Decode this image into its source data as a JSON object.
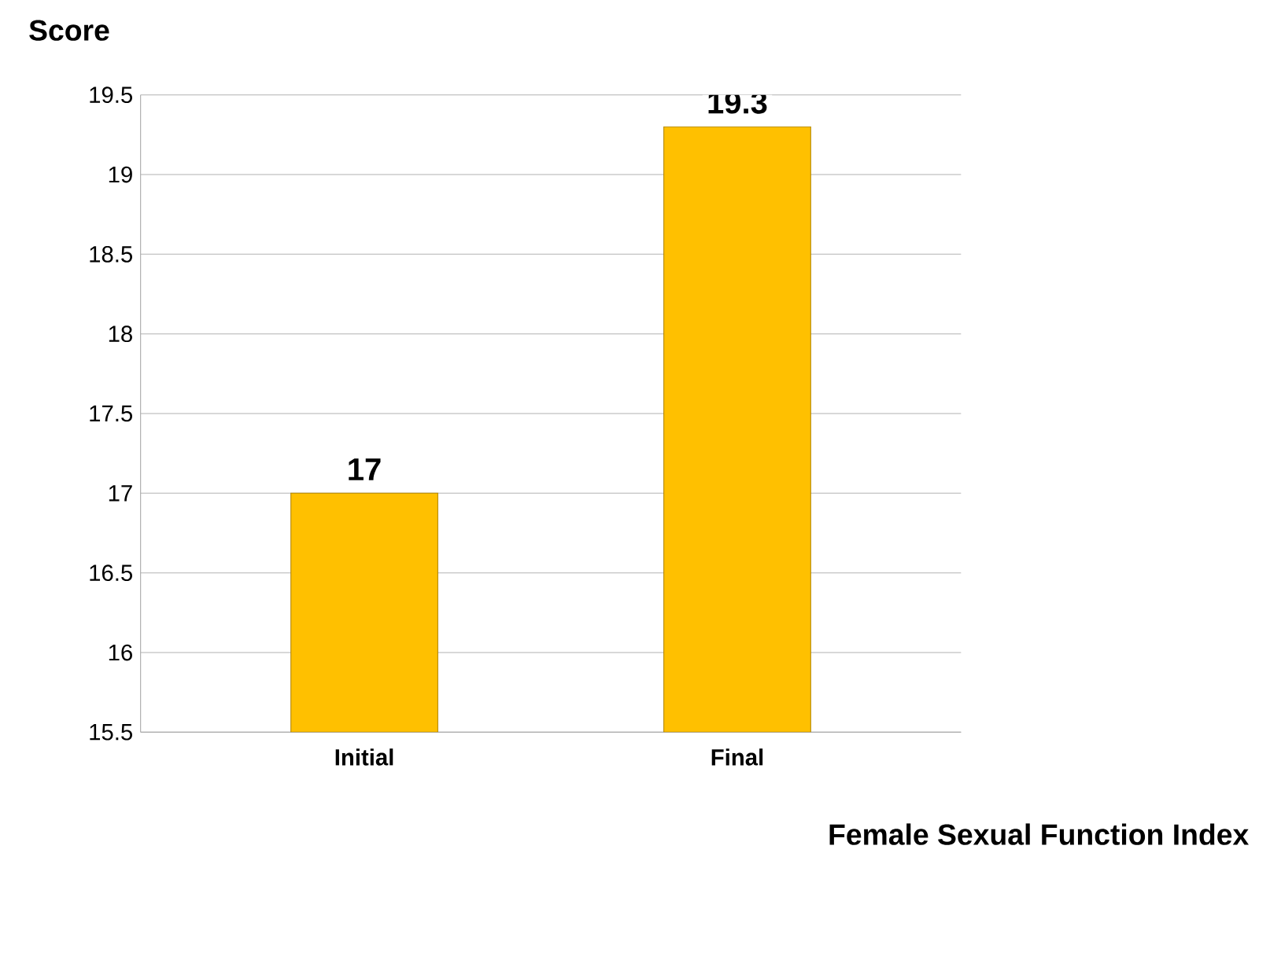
{
  "chart_data": {
    "type": "bar",
    "ylabel": "Score",
    "xlabel": "Female Sexual Function Index",
    "categories": [
      "Initial",
      "Final"
    ],
    "values": [
      17,
      19.3
    ],
    "color": "#ffc000",
    "ylim": [
      15.5,
      19.5
    ],
    "yticks": [
      15.5,
      16,
      16.5,
      17,
      17.5,
      18,
      18.5,
      19,
      19.5
    ],
    "grid": "y",
    "data_labels": true
  }
}
